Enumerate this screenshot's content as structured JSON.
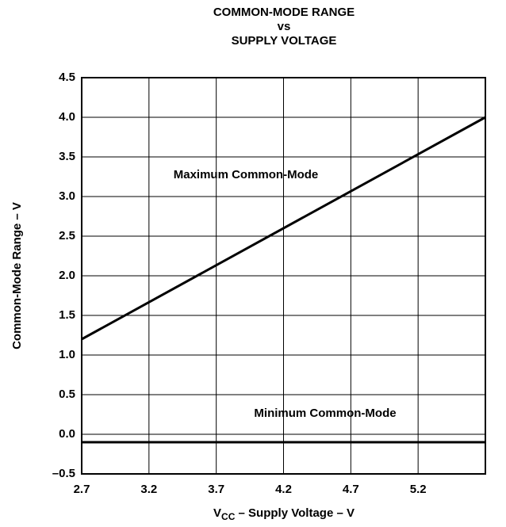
{
  "chart_data": {
    "type": "line",
    "title": [
      "COMMON-MODE RANGE",
      "vs",
      "SUPPLY VOLTAGE"
    ],
    "x_label": {
      "main": "V",
      "sub": "CC",
      "rest": " – Supply Voltage – V"
    },
    "y_label": "Common-Mode Range – V",
    "x": [
      2.7,
      5.7
    ],
    "series": [
      {
        "name": "Maximum Common-Mode",
        "color": "#000000",
        "values": [
          1.2,
          4.0
        ]
      },
      {
        "name": "Minimum Common-Mode",
        "color": "#000000",
        "values": [
          -0.1,
          -0.1
        ]
      }
    ],
    "xlim": [
      2.7,
      5.7
    ],
    "xticks": [
      2.7,
      3.2,
      3.7,
      4.2,
      4.7,
      5.2
    ],
    "ylim": [
      -0.5,
      4.5
    ],
    "yticks": [
      {
        "value": -0.5,
        "label": "–0.5"
      },
      {
        "value": 0,
        "label": "0.0"
      },
      0.5,
      {
        "value": 1,
        "label": "1.0"
      },
      1.5,
      {
        "value": 2,
        "label": "2.0"
      },
      2.5,
      {
        "value": 3,
        "label": "3.0"
      },
      3.5,
      {
        "value": 4,
        "label": "4.0"
      },
      4.5
    ],
    "grid": true
  }
}
